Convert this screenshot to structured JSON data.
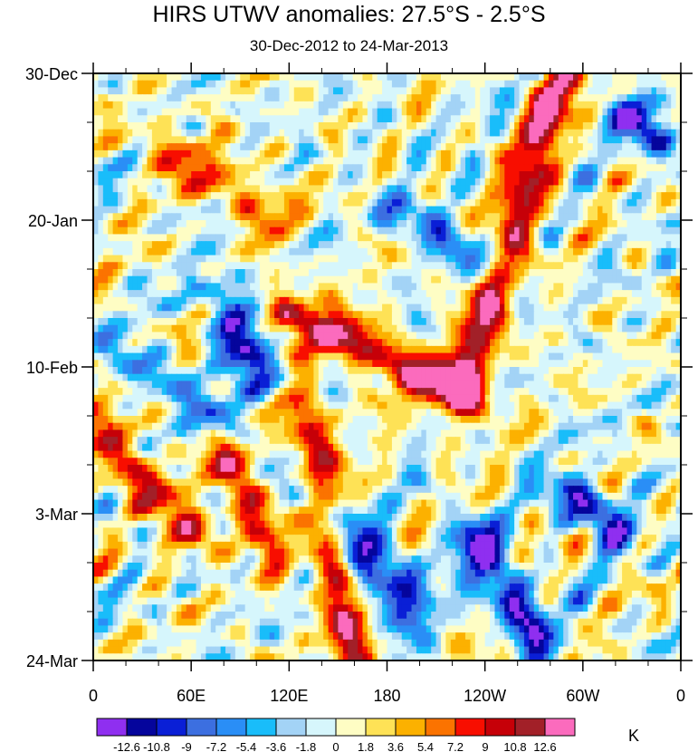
{
  "chart_data": {
    "type": "heatmap",
    "title": "HIRS UTWV anomalies: 27.5°S - 2.5°S",
    "subtitle": "30-Dec-2012 to 24-Mar-2013",
    "x_ticks": [
      "0",
      "60E",
      "120E",
      "180",
      "120W",
      "60W",
      "0"
    ],
    "x_tick_values": [
      0,
      60,
      120,
      180,
      240,
      300,
      360
    ],
    "y_ticks": [
      "30-Dec",
      "20-Jan",
      "10-Feb",
      "3-Mar",
      "24-Mar"
    ],
    "y_tick_values": [
      0,
      21,
      42,
      63,
      84
    ],
    "xlim": [
      0,
      360
    ],
    "ylim": [
      0,
      84
    ],
    "colorbar": {
      "unit": "K",
      "levels": [
        "-12.6",
        "-10.8",
        "-9",
        "-7.2",
        "-5.4",
        "-3.6",
        "-1.8",
        "0",
        "1.8",
        "3.6",
        "5.4",
        "7.2",
        "9",
        "10.8",
        "12.6"
      ],
      "colors": [
        "#8f2ff0",
        "#05059c",
        "#0a1fd6",
        "#3c6fe0",
        "#2a8ef6",
        "#19bdfa",
        "#a3d3f6",
        "#d6f6fc",
        "#fefdc4",
        "#fee256",
        "#fcb100",
        "#fb7300",
        "#f80e00",
        "#c60008",
        "#a22028",
        "#fb6bbd"
      ]
    },
    "features": [
      {
        "type": "band",
        "sign": "positive",
        "lon_start": 120,
        "day_start": 34,
        "lon_end": 225,
        "day_end": 46,
        "peak": 12.6
      },
      {
        "type": "band",
        "sign": "positive",
        "lon_start": 225,
        "day_start": 46,
        "lon_end": 287,
        "day_end": 0,
        "peak": 12.6
      },
      {
        "type": "band",
        "sign": "positive",
        "lon_start": 130,
        "day_start": 48,
        "lon_end": 160,
        "day_end": 84,
        "peak": 10.8
      },
      {
        "type": "band",
        "sign": "positive",
        "lon_start": 0,
        "day_start": 50,
        "lon_end": 60,
        "day_end": 66,
        "peak": 9
      },
      {
        "type": "band",
        "sign": "positive",
        "lon_start": 80,
        "day_start": 55,
        "lon_end": 110,
        "day_end": 68,
        "peak": 9
      },
      {
        "type": "band",
        "sign": "positive",
        "lon_start": 40,
        "day_start": 10,
        "lon_end": 110,
        "day_end": 20,
        "peak": 7.2
      },
      {
        "type": "band",
        "sign": "negative",
        "lon_start": 190,
        "day_start": 20,
        "lon_end": 250,
        "day_end": 28,
        "peak": -7.2
      },
      {
        "type": "band",
        "sign": "negative",
        "lon_start": 230,
        "day_start": 66,
        "lon_end": 270,
        "day_end": 80,
        "peak": -12.6
      },
      {
        "type": "band",
        "sign": "negative",
        "lon_start": 80,
        "day_start": 32,
        "lon_end": 100,
        "day_end": 44,
        "peak": -10.8
      },
      {
        "type": "band",
        "sign": "negative",
        "lon_start": 160,
        "day_start": 68,
        "lon_end": 190,
        "day_end": 78,
        "peak": -7.2
      },
      {
        "type": "band",
        "sign": "negative",
        "lon_start": 130,
        "day_start": 60,
        "lon_end": 200,
        "day_end": 75,
        "peak": -7.2
      },
      {
        "type": "band",
        "sign": "negative",
        "lon_start": 290,
        "day_start": 60,
        "lon_end": 320,
        "day_end": 65,
        "peak": -10.8
      },
      {
        "type": "band",
        "sign": "negative",
        "lon_start": 330,
        "day_start": 6,
        "lon_end": 345,
        "day_end": 10,
        "peak": -10.8
      },
      {
        "type": "band",
        "sign": "negative",
        "lon_start": 20,
        "day_start": 40,
        "lon_end": 80,
        "day_end": 50,
        "peak": -5.4
      }
    ]
  }
}
